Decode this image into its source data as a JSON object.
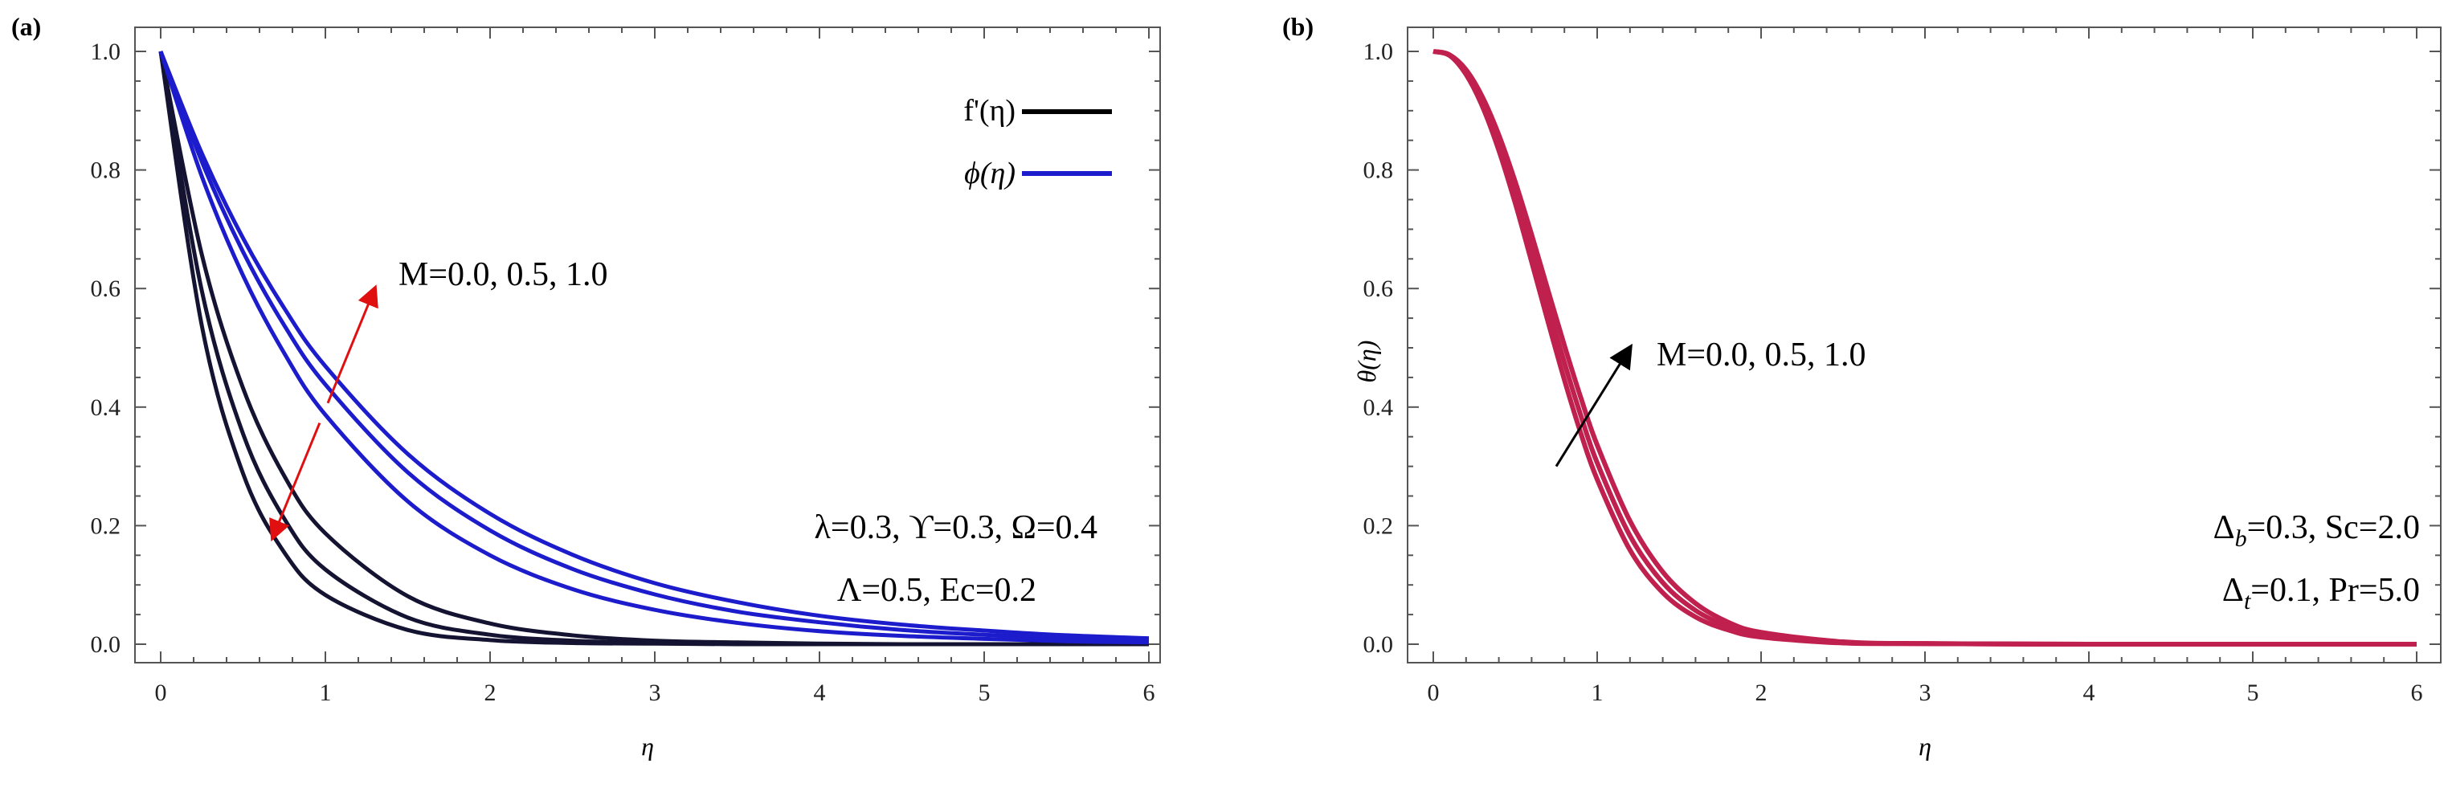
{
  "figure": {
    "panels": [
      {
        "label": "(a)",
        "xlabel": "η",
        "ylabel": "",
        "xticks": [
          "0",
          "1",
          "2",
          "3",
          "4",
          "5",
          "6"
        ],
        "yticks": [
          "0.0",
          "0.2",
          "0.4",
          "0.6",
          "0.8",
          "1.0"
        ],
        "legend": [
          "f'(η)",
          "ϕ(η)"
        ],
        "annotation": "M=0.0, 0.5, 1.0",
        "params": [
          "λ=0.3, ϒ=0.3, Ω=0.4",
          "Λ=0.5, Ec=0.2"
        ]
      },
      {
        "label": "(b)",
        "xlabel": "η",
        "ylabel": "θ(η)",
        "xticks": [
          "0",
          "1",
          "2",
          "3",
          "4",
          "5",
          "6"
        ],
        "yticks": [
          "0.0",
          "0.2",
          "0.4",
          "0.6",
          "0.8",
          "1.0"
        ],
        "annotation": "M=0.0, 0.5, 1.0",
        "params": [
          {
            "delta": "Δ",
            "sub": "b",
            "rest": "=0.3, Sc=2.0"
          },
          {
            "delta": "Δ",
            "sub": "t",
            "rest": "=0.1, Pr=5.0"
          }
        ]
      }
    ]
  },
  "chart_data": [
    {
      "type": "line",
      "panel": "a",
      "xlabel": "η",
      "ylabel": "",
      "xlim": [
        0,
        6
      ],
      "ylim": [
        0,
        1
      ],
      "legend_position": "top-right",
      "x": [
        0,
        0.25,
        0.5,
        0.75,
        1,
        1.5,
        2,
        2.5,
        3,
        3.5,
        4,
        4.5,
        5,
        5.5,
        6
      ],
      "series": [
        {
          "name": "f'(η), M=0.0",
          "color": "#141432",
          "values": [
            1,
            0.537,
            0.288,
            0.155,
            0.083,
            0.024,
            0.007,
            0.002,
            0.001,
            0,
            0,
            0,
            0,
            0,
            0
          ]
        },
        {
          "name": "f'(η), M=0.5",
          "color": "#141432",
          "values": [
            1,
            0.596,
            0.355,
            0.212,
            0.126,
            0.045,
            0.016,
            0.006,
            0.002,
            0.001,
            0,
            0,
            0,
            0,
            0
          ]
        },
        {
          "name": "f'(η), M=1.0",
          "color": "#141432",
          "values": [
            1,
            0.657,
            0.432,
            0.284,
            0.187,
            0.081,
            0.035,
            0.015,
            0.006,
            0.003,
            0.001,
            0,
            0,
            0,
            0
          ]
        },
        {
          "name": "ϕ(η), M=0.0",
          "color": "#1c1ccc",
          "values": [
            1,
            0.789,
            0.622,
            0.491,
            0.387,
            0.241,
            0.15,
            0.093,
            0.058,
            0.036,
            0.022,
            0.014,
            0.009,
            0.005,
            0.003
          ]
        },
        {
          "name": "ϕ(η), M=0.5",
          "color": "#1c1ccc",
          "values": [
            1,
            0.814,
            0.662,
            0.538,
            0.438,
            0.29,
            0.192,
            0.127,
            0.084,
            0.055,
            0.037,
            0.024,
            0.016,
            0.011,
            0.007
          ]
        },
        {
          "name": "ϕ(η), M=1.0",
          "color": "#1c1ccc",
          "values": [
            1,
            0.828,
            0.685,
            0.567,
            0.469,
            0.321,
            0.22,
            0.151,
            0.103,
            0.071,
            0.048,
            0.033,
            0.023,
            0.015,
            0.01
          ]
        }
      ],
      "arrow": {
        "color": "#e01010",
        "from": [
          0.68,
          0.18
        ],
        "to": [
          1.3,
          0.6
        ],
        "style": "double-headed, dashed middle"
      }
    },
    {
      "type": "line",
      "panel": "b",
      "xlabel": "η",
      "ylabel": "θ(η)",
      "xlim": [
        0,
        6
      ],
      "ylim": [
        0,
        1
      ],
      "x": [
        0,
        0.1,
        0.2,
        0.3,
        0.4,
        0.5,
        0.6,
        0.7,
        0.8,
        0.9,
        1,
        1.2,
        1.4,
        1.6,
        1.8,
        2,
        2.5,
        3,
        4,
        5,
        6
      ],
      "series": [
        {
          "name": "θ(η), M=0.0",
          "color": "#c0204e",
          "values": [
            1,
            0.993,
            0.961,
            0.907,
            0.833,
            0.744,
            0.645,
            0.544,
            0.446,
            0.356,
            0.278,
            0.159,
            0.087,
            0.046,
            0.024,
            0.012,
            0.002,
            0.001,
            0,
            0,
            0
          ]
        },
        {
          "name": "θ(η), M=0.5",
          "color": "#c0204e",
          "values": [
            1,
            0.994,
            0.965,
            0.915,
            0.846,
            0.762,
            0.668,
            0.571,
            0.475,
            0.386,
            0.306,
            0.183,
            0.104,
            0.057,
            0.03,
            0.016,
            0.003,
            0.001,
            0,
            0,
            0
          ]
        },
        {
          "name": "θ(η), M=1.0",
          "color": "#c0204e",
          "values": [
            1,
            0.994,
            0.969,
            0.923,
            0.859,
            0.78,
            0.691,
            0.597,
            0.504,
            0.416,
            0.336,
            0.208,
            0.122,
            0.069,
            0.037,
            0.02,
            0.004,
            0.001,
            0,
            0,
            0
          ]
        }
      ],
      "arrow": {
        "color": "#000000",
        "from": [
          0.75,
          0.3
        ],
        "to": [
          1.2,
          0.5
        ],
        "style": "single-headed"
      }
    }
  ]
}
